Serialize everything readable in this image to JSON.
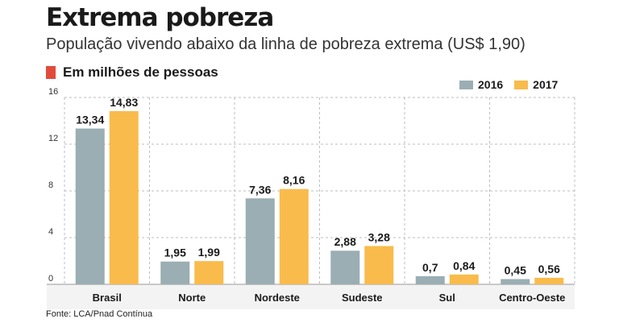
{
  "header": {
    "title": "Extrema pobreza",
    "subtitle": "População vivendo abaixo da linha de pobreza extrema (US$ 1,90)",
    "unit_label": "Em milhões de pessoas",
    "unit_color": "#e14b3b"
  },
  "source": "Fonte: LCA/Pnad Contínua",
  "chart_data": {
    "type": "bar",
    "title": "Extrema pobreza",
    "ylabel": "Em milhões de pessoas",
    "xlabel": "",
    "ylim": [
      0,
      16
    ],
    "yticks": [
      "0",
      "4",
      "8",
      "12",
      "16"
    ],
    "grid": true,
    "legend_position": "top-right",
    "categories": [
      "Brasil",
      "Norte",
      "Nordeste",
      "Sudeste",
      "Sul",
      "Centro-Oeste"
    ],
    "series": [
      {
        "name": "2016",
        "color": "#9aaeb3",
        "values": [
          13.34,
          1.95,
          7.36,
          2.88,
          0.7,
          0.45
        ],
        "labels": [
          "13,34",
          "1,95",
          "7,36",
          "2,88",
          "0,7",
          "0,45"
        ]
      },
      {
        "name": "2017",
        "color": "#f9bb4c",
        "values": [
          14.83,
          1.99,
          8.16,
          3.28,
          0.84,
          0.56
        ],
        "labels": [
          "14,83",
          "1,99",
          "8,16",
          "3,28",
          "0,84",
          "0,56"
        ]
      }
    ]
  }
}
